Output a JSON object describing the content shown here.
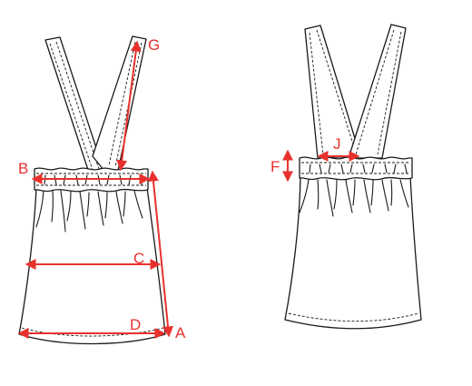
{
  "diagram": {
    "measure_color": "#e8312d",
    "line_color": "#1a1a1a",
    "labels": {
      "A": "A",
      "B": "B",
      "C": "C",
      "D": "D",
      "G": "G",
      "F": "F",
      "J": "J"
    }
  }
}
